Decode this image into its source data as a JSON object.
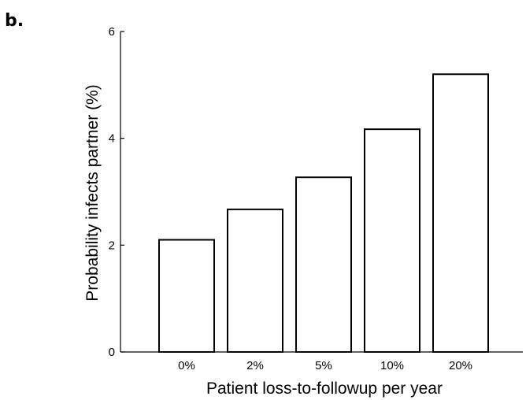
{
  "panel_label": "b.",
  "chart_data": {
    "type": "bar",
    "categories": [
      "0%",
      "2%",
      "5%",
      "10%",
      "20%"
    ],
    "values": [
      2.1,
      2.67,
      3.27,
      4.17,
      5.2
    ],
    "xlabel": "Patient loss-to-followup per year",
    "ylabel": "Probability infects partner (%)",
    "ylim": [
      0,
      6
    ],
    "yticks": [
      0,
      2,
      4,
      6
    ],
    "grid": false,
    "bar_fill": "#ffffff",
    "bar_edge": "#000000"
  }
}
